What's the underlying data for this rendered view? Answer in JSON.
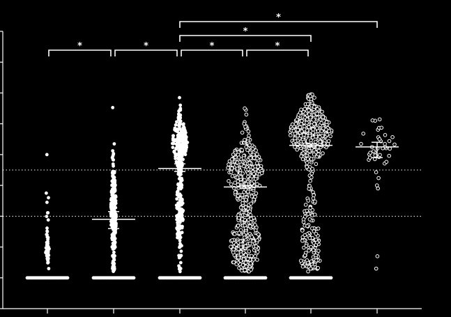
{
  "chart_data": {
    "type": "scatter",
    "style": "column scatter (beeswarm) with median and interquartile range",
    "ylim": [
      0,
      9
    ],
    "yticks": [
      0,
      1,
      2,
      3,
      4,
      5,
      6,
      7,
      8,
      9
    ],
    "reference_lines": [
      3,
      4.5
    ],
    "groups": [
      {
        "index": 0,
        "marker": "filled",
        "median": 1.0,
        "q1": 1.0,
        "q3": 1.0,
        "floor_count": 45,
        "clusters": [
          {
            "center": 1.0,
            "sd": 0.0,
            "n": 45,
            "spread": 30
          },
          {
            "center": 1.9,
            "sd": 0.25,
            "n": 45,
            "spread": 2.5
          },
          {
            "center": 2.6,
            "sd": 0.35,
            "n": 12,
            "spread": 1.5
          }
        ],
        "outliers": [
          5.0,
          3.75,
          3.6,
          3.45,
          1.3
        ]
      },
      {
        "index": 1,
        "marker": "filled",
        "median": 2.9,
        "q1": 2.6,
        "q3": 3.15,
        "floor_count": 45,
        "clusters": [
          {
            "center": 1.0,
            "sd": 0.0,
            "n": 45,
            "spread": 30
          },
          {
            "center": 3.1,
            "sd": 0.9,
            "n": 230,
            "spread": 4
          }
        ],
        "outliers": [
          5.0,
          4.9,
          1.3,
          1.35
        ]
      },
      {
        "index": 2,
        "marker": "filled",
        "median": 4.55,
        "q1": 4.45,
        "q3": 4.7,
        "floor_count": 45,
        "clusters": [
          {
            "center": 1.0,
            "sd": 0.0,
            "n": 45,
            "spread": 30
          },
          {
            "center": 5.4,
            "sd": 0.45,
            "n": 200,
            "spread": 11
          },
          {
            "center": 3.2,
            "sd": 1.0,
            "n": 160,
            "spread": 5
          }
        ],
        "outliers": [
          6.5,
          6.3,
          1.3
        ]
      },
      {
        "index": 3,
        "marker": "hollow",
        "median": 3.95,
        "q1": 3.9,
        "q3": 4.0,
        "floor_count": 40,
        "clusters": [
          {
            "center": 1.0,
            "sd": 0.0,
            "n": 40,
            "spread": 30
          },
          {
            "center": 4.4,
            "sd": 0.65,
            "n": 260,
            "spread": 26
          },
          {
            "center": 2.2,
            "sd": 0.6,
            "n": 200,
            "spread": 22
          },
          {
            "center": 1.55,
            "sd": 0.2,
            "n": 40,
            "spread": 18
          }
        ],
        "outliers": [
          6.5,
          6.3,
          6.0,
          5.9,
          1.25
        ]
      },
      {
        "index": 4,
        "marker": "hollow",
        "median": 5.3,
        "q1": 5.25,
        "q3": 5.35,
        "floor_count": 30,
        "clusters": [
          {
            "center": 1.0,
            "sd": 0.0,
            "n": 30,
            "spread": 30
          },
          {
            "center": 5.7,
            "sd": 0.55,
            "n": 330,
            "spread": 30
          },
          {
            "center": 2.4,
            "sd": 0.8,
            "n": 110,
            "spread": 13
          },
          {
            "center": 1.5,
            "sd": 0.2,
            "n": 30,
            "spread": 15
          }
        ],
        "outliers": [
          6.95,
          6.9,
          6.8,
          1.3
        ]
      },
      {
        "index": 5,
        "marker": "hollow",
        "median": 5.25,
        "q1": 4.9,
        "q3": 5.4,
        "floor_count": 0,
        "clusters": [
          {
            "center": 5.35,
            "sd": 0.45,
            "n": 38,
            "spread": 26
          }
        ],
        "outliers": [
          4.0,
          3.9,
          1.7,
          1.3
        ]
      }
    ],
    "significance": [
      {
        "from": 0,
        "to": 1,
        "label": "*",
        "level": 0
      },
      {
        "from": 1,
        "to": 2,
        "label": "*",
        "level": 0
      },
      {
        "from": 2,
        "to": 3,
        "label": "*",
        "level": 0
      },
      {
        "from": 3,
        "to": 4,
        "label": "*",
        "level": 0
      },
      {
        "from": 2,
        "to": 4,
        "label": "*",
        "level": 1
      },
      {
        "from": 2,
        "to": 5,
        "label": "*",
        "level": 2
      }
    ]
  }
}
